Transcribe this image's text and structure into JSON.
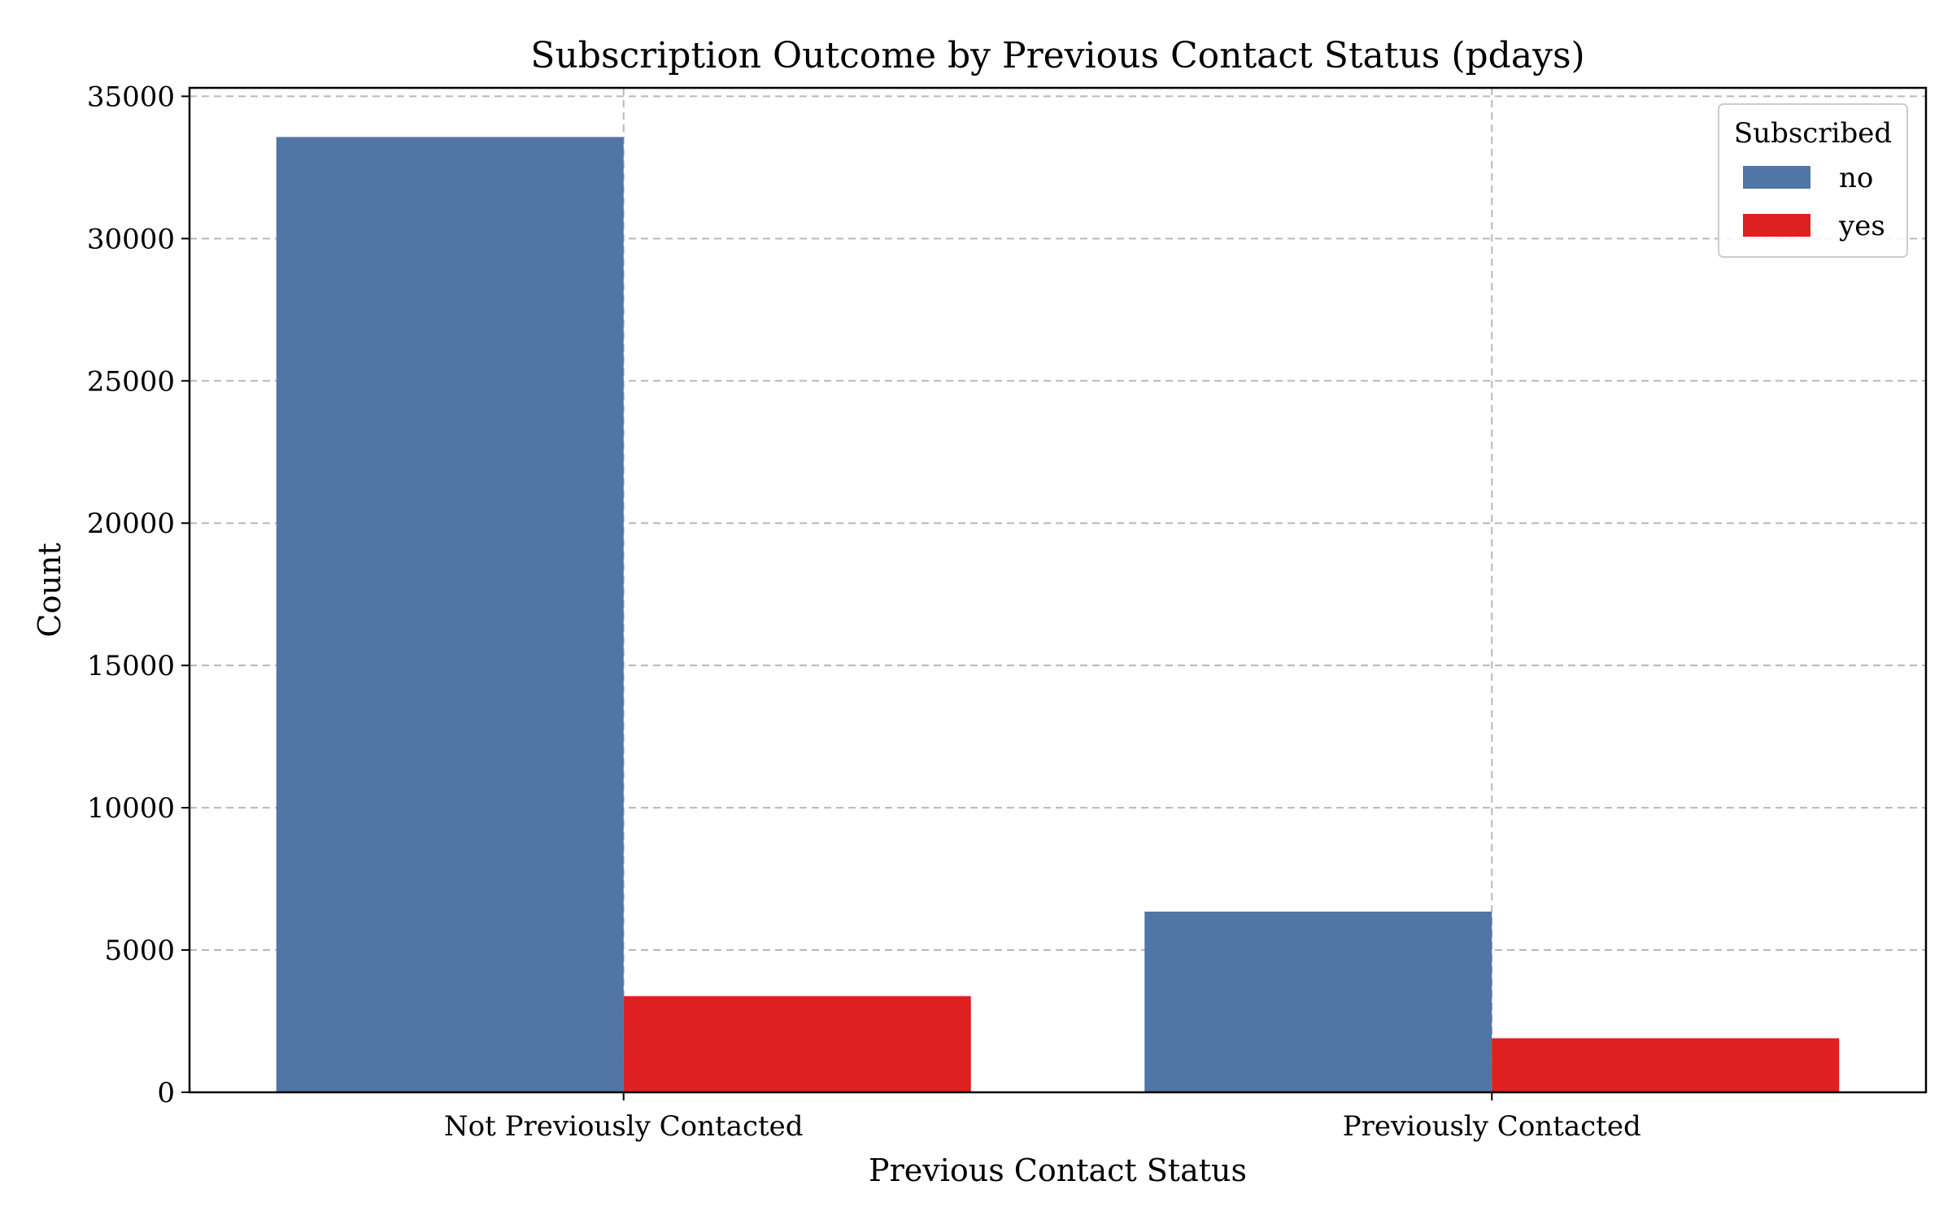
{
  "chart_data": {
    "type": "bar",
    "title": "Subscription Outcome by Previous Contact Status (pdays)",
    "xlabel": "Previous Contact Status",
    "ylabel": "Count",
    "categories": [
      "Not Previously Contacted",
      "Previously Contacted"
    ],
    "series": [
      {
        "name": "no",
        "values": [
          33570,
          6350
        ],
        "color": "#5175a5"
      },
      {
        "name": "yes",
        "values": [
          3380,
          1900
        ],
        "color": "#de2021"
      }
    ],
    "ylim": [
      0,
      35000
    ],
    "yticks": [
      0,
      5000,
      10000,
      15000,
      20000,
      25000,
      30000,
      35000
    ],
    "ytick_labels": [
      "0",
      "5000",
      "10000",
      "15000",
      "20000",
      "25000",
      "30000",
      "35000"
    ],
    "grid": true,
    "legend": {
      "title": "Subscribed",
      "placement": "top-right"
    }
  }
}
